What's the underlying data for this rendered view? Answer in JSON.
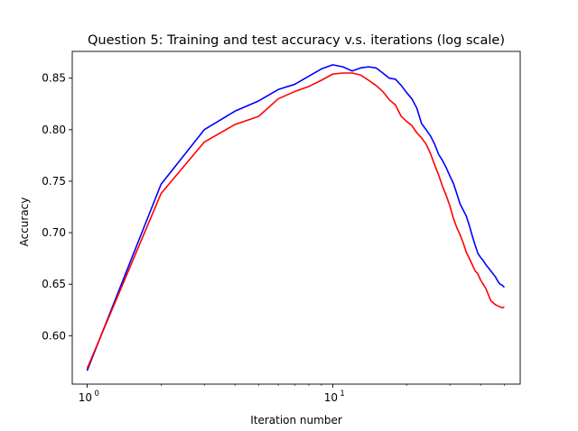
{
  "chart_data": {
    "type": "line",
    "title": "Question 5: Training and test accuracy v.s. iterations (log scale)",
    "xlabel": "Iteration number",
    "ylabel": "Accuracy",
    "xscale": "log",
    "xlim": [
      0.87,
      58
    ],
    "ylim": [
      0.553,
      0.876
    ],
    "grid": false,
    "legend": "none",
    "x_tick_labels": [
      {
        "value": 1,
        "base": "10",
        "exp": "0"
      },
      {
        "value": 10,
        "base": "10",
        "exp": "1"
      }
    ],
    "y_ticks": [
      "0.60",
      "0.65",
      "0.70",
      "0.75",
      "0.80",
      "0.85"
    ],
    "x": [
      1,
      2,
      3,
      4,
      5,
      6,
      7,
      8,
      9,
      10,
      11,
      12,
      13,
      14,
      15,
      16,
      17,
      18,
      19,
      20,
      21,
      22,
      23,
      24,
      25,
      26,
      27,
      28,
      29,
      30,
      31,
      32,
      33,
      34,
      35,
      36,
      37,
      38,
      39,
      40,
      41,
      42,
      43,
      44,
      45,
      46,
      47,
      48,
      49,
      50
    ],
    "series": [
      {
        "color": "#0000ff",
        "values": [
          0.566,
          0.747,
          0.8,
          0.818,
          0.828,
          0.839,
          0.844,
          0.852,
          0.859,
          0.863,
          0.861,
          0.857,
          0.86,
          0.861,
          0.86,
          0.855,
          0.85,
          0.849,
          0.843,
          0.836,
          0.83,
          0.821,
          0.806,
          0.8,
          0.794,
          0.786,
          0.776,
          0.77,
          0.763,
          0.755,
          0.748,
          0.738,
          0.728,
          0.722,
          0.716,
          0.707,
          0.697,
          0.688,
          0.68,
          0.676,
          0.673,
          0.669,
          0.666,
          0.663,
          0.66,
          0.657,
          0.653,
          0.65,
          0.649,
          0.647
        ]
      },
      {
        "color": "#ff0000",
        "values": [
          0.568,
          0.738,
          0.788,
          0.805,
          0.813,
          0.83,
          0.837,
          0.842,
          0.848,
          0.854,
          0.855,
          0.855,
          0.853,
          0.848,
          0.843,
          0.837,
          0.829,
          0.824,
          0.813,
          0.808,
          0.804,
          0.797,
          0.792,
          0.786,
          0.777,
          0.766,
          0.756,
          0.745,
          0.736,
          0.726,
          0.714,
          0.705,
          0.698,
          0.69,
          0.681,
          0.675,
          0.669,
          0.663,
          0.66,
          0.654,
          0.65,
          0.646,
          0.64,
          0.634,
          0.632,
          0.63,
          0.629,
          0.628,
          0.627,
          0.628
        ]
      }
    ]
  }
}
